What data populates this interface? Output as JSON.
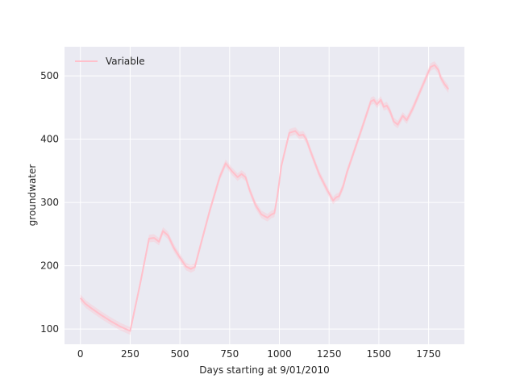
{
  "chart_data": {
    "type": "line",
    "title": "",
    "xlabel": "Days starting at 9/01/2010",
    "ylabel": "groundwater",
    "xlim": [
      -80,
      1930
    ],
    "ylim": [
      76,
      546
    ],
    "xticks": [
      0,
      250,
      500,
      750,
      1000,
      1250,
      1500,
      1750
    ],
    "yticks": [
      100,
      200,
      300,
      400,
      500
    ],
    "grid": true,
    "legend_position": "top-left",
    "colors": {
      "background": "#eaeaf2",
      "grid": "#ffffff",
      "series": "#ffc0cb",
      "band": "#ffc0cb"
    },
    "series": [
      {
        "name": "Variable",
        "x": [
          0,
          25,
          50,
          100,
          150,
          200,
          250,
          300,
          345,
          370,
          395,
          415,
          440,
          470,
          500,
          530,
          555,
          575,
          600,
          650,
          700,
          730,
          760,
          790,
          810,
          830,
          850,
          880,
          910,
          940,
          960,
          975,
          990,
          1010,
          1050,
          1080,
          1100,
          1120,
          1135,
          1160,
          1200,
          1240,
          1270,
          1285,
          1300,
          1320,
          1340,
          1380,
          1420,
          1460,
          1475,
          1490,
          1510,
          1525,
          1540,
          1555,
          1575,
          1595,
          1620,
          1640,
          1670,
          1700,
          1730,
          1760,
          1780,
          1800,
          1810,
          1830,
          1850
        ],
        "y": [
          149,
          140,
          134,
          123,
          113,
          104,
          97,
          171,
          243,
          244,
          238,
          255,
          248,
          228,
          213,
          199,
          195,
          198,
          228,
          287,
          340,
          362,
          350,
          340,
          345,
          340,
          320,
          296,
          281,
          276,
          281,
          283,
          310,
          358,
          410,
          413,
          406,
          407,
          400,
          378,
          345,
          320,
          303,
          308,
          310,
          325,
          348,
          385,
          422,
          460,
          462,
          455,
          462,
          451,
          453,
          445,
          428,
          423,
          437,
          430,
          448,
          470,
          492,
          514,
          517,
          509,
          498,
          487,
          479
        ],
        "band": 6
      }
    ]
  }
}
